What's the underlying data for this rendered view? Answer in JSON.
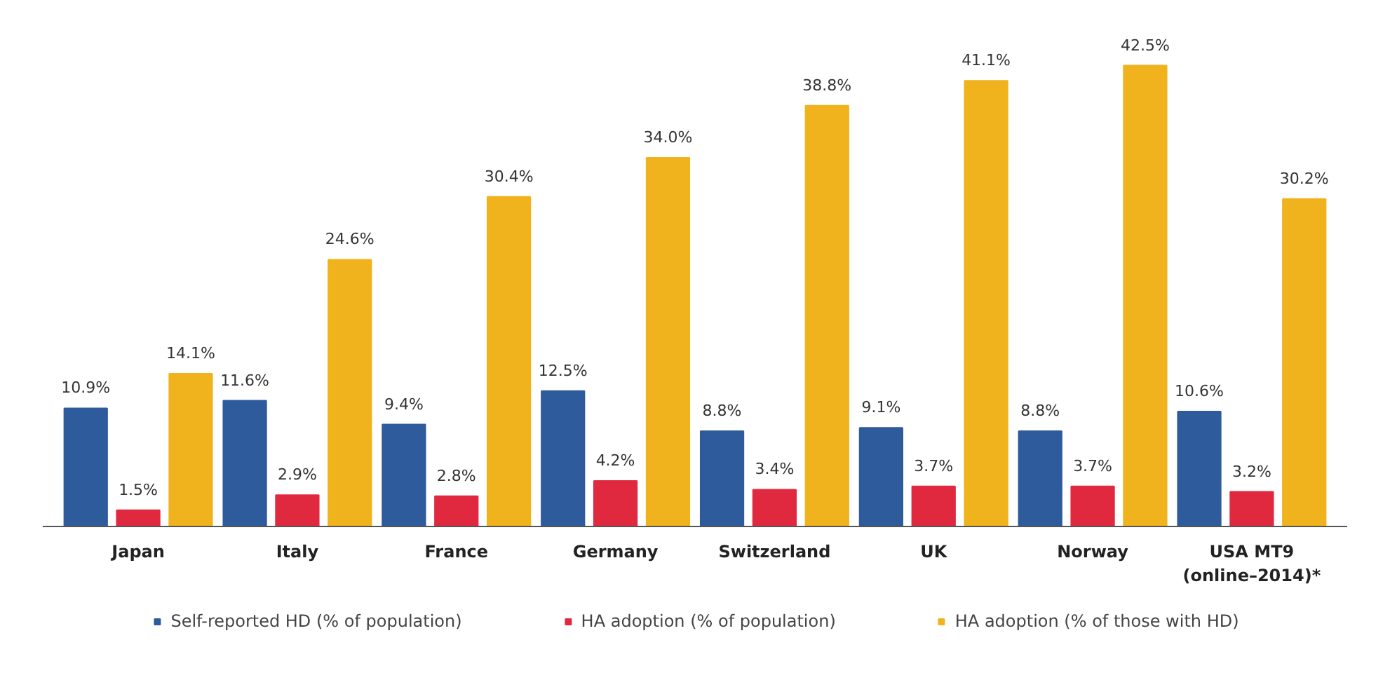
{
  "chart_data": {
    "type": "bar",
    "categories": [
      "Japan",
      "Italy",
      "France",
      "Germany",
      "Switzerland",
      "UK",
      "Norway",
      "USA MT9\n(online–2014)*"
    ],
    "series": [
      {
        "name": "Self-reported HD (% of population)",
        "color": "#2e5b9c",
        "values": [
          10.9,
          11.6,
          9.4,
          12.5,
          8.8,
          9.1,
          8.8,
          10.6
        ],
        "value_labels": [
          "10.9%",
          "11.6%",
          "9.4%",
          "12.5%",
          "8.8%",
          "9.1%",
          "8.8%",
          "10.6%"
        ]
      },
      {
        "name": "HA adoption (% of population)",
        "color": "#e0293f",
        "values": [
          1.5,
          2.9,
          2.8,
          4.2,
          3.4,
          3.7,
          3.7,
          3.2
        ],
        "value_labels": [
          "1.5%",
          "2.9%",
          "2.8%",
          "4.2%",
          "3.4%",
          "3.7%",
          "3.7%",
          "3.2%"
        ]
      },
      {
        "name": "HA adoption (% of those with HD)",
        "color": "#f0b31d",
        "values": [
          14.1,
          24.6,
          30.4,
          34.0,
          38.8,
          41.1,
          42.5,
          30.2
        ],
        "value_labels": [
          "14.1%",
          "24.6%",
          "30.4%",
          "34.0%",
          "38.8%",
          "41.1%",
          "42.5%",
          "30.2%"
        ]
      }
    ],
    "legend": "bottom",
    "grid": false
  }
}
